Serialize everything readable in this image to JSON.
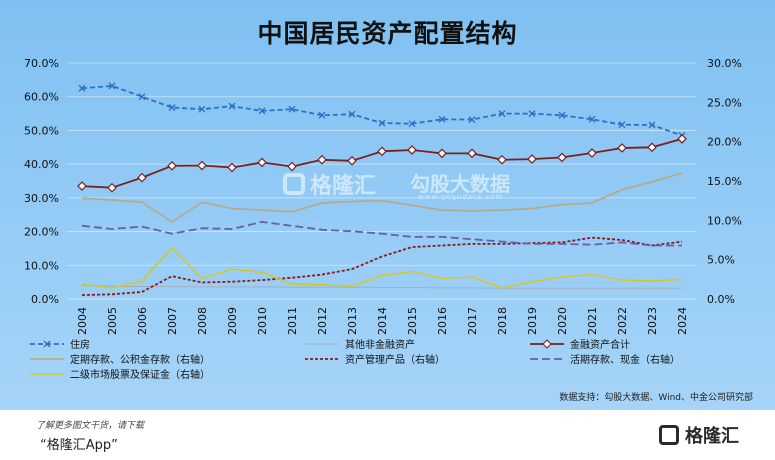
{
  "title": "中国居民资产配置结构",
  "source": "数据支持：勾股大数据、Wind、中金公司研究部",
  "footer": {
    "line1": "了解更多图文干货，请下载",
    "line2": "“格隆汇App”",
    "logo_text": "格隆汇"
  },
  "watermark": {
    "left_text": "格隆汇",
    "right_text": "勾股大数据",
    "right_sub": "www.gogudata.com"
  },
  "chart_data": {
    "type": "line",
    "title": "中国居民资产配置结构",
    "x": [
      "2004",
      "2005",
      "2006",
      "2007",
      "2008",
      "2009",
      "2010",
      "2011",
      "2012",
      "2013",
      "2014",
      "2015",
      "2016",
      "2017",
      "2018",
      "2019",
      "2020",
      "2021",
      "2022",
      "2023",
      "2024"
    ],
    "left_axis": {
      "ylim": [
        0,
        70
      ],
      "ticks": [
        "0.0%",
        "10.0%",
        "20.0%",
        "30.0%",
        "40.0%",
        "50.0%",
        "60.0%",
        "70.0%"
      ]
    },
    "right_axis": {
      "ylim": [
        0,
        30
      ],
      "ticks": [
        "0.0%",
        "5.0%",
        "10.0%",
        "15.0%",
        "20.0%",
        "25.0%",
        "30.0%"
      ]
    },
    "grid": true,
    "legend_position": "bottom",
    "series": [
      {
        "name": "住房",
        "axis": "left",
        "style": "dashed-x",
        "color": "#2f6fc4",
        "values": [
          62.5,
          63.2,
          60.0,
          56.8,
          56.3,
          57.2,
          55.8,
          56.3,
          54.5,
          54.8,
          52.2,
          52.0,
          53.3,
          53.2,
          55.0,
          55.0,
          54.5,
          53.3,
          51.7,
          51.6,
          48.5
        ]
      },
      {
        "name": "其他非金融资产",
        "axis": "left",
        "style": "solid-thin",
        "color": "#9fb1bd",
        "values": [
          4.0,
          3.8,
          3.7,
          3.7,
          3.6,
          3.6,
          3.6,
          3.5,
          3.5,
          3.5,
          3.4,
          3.4,
          3.3,
          3.3,
          3.2,
          3.2,
          3.2,
          3.2,
          3.2,
          3.2,
          3.2
        ]
      },
      {
        "name": "金融资产合计",
        "axis": "left",
        "style": "solid-diamond",
        "color": "#7a1f1f",
        "values": [
          33.5,
          33.0,
          36.0,
          39.5,
          39.6,
          39.0,
          40.5,
          39.3,
          41.3,
          41.0,
          43.8,
          44.2,
          43.2,
          43.2,
          41.3,
          41.5,
          42.0,
          43.3,
          44.8,
          45.0,
          47.5
        ]
      },
      {
        "name": "定期存款、公积金存款（右轴）",
        "axis": "right",
        "style": "solid",
        "color": "#b3ab8e",
        "values": [
          12.8,
          12.6,
          12.3,
          9.8,
          12.3,
          11.5,
          11.3,
          11.1,
          12.2,
          12.4,
          12.5,
          11.9,
          11.3,
          11.2,
          11.3,
          11.5,
          12.0,
          12.2,
          13.9,
          14.9,
          16.0
        ]
      },
      {
        "name": "资产管理产品（右轴）",
        "axis": "right",
        "style": "short-dash",
        "color": "#8b1a1a",
        "values": [
          0.5,
          0.6,
          0.9,
          2.9,
          2.1,
          2.2,
          2.4,
          2.7,
          3.1,
          3.8,
          5.4,
          6.6,
          6.8,
          7.0,
          7.0,
          7.1,
          7.2,
          7.8,
          7.5,
          6.8,
          7.3
        ]
      },
      {
        "name": "活期存款、现金（右轴）",
        "axis": "right",
        "style": "long-dash",
        "color": "#6a5da3",
        "values": [
          9.3,
          8.9,
          9.2,
          8.3,
          9.0,
          8.9,
          9.8,
          9.3,
          8.8,
          8.6,
          8.3,
          7.9,
          7.9,
          7.6,
          7.3,
          7.0,
          7.0,
          6.9,
          7.2,
          6.8,
          6.8
        ]
      },
      {
        "name": "二级市场股票及保证金（右轴）",
        "axis": "right",
        "style": "solid",
        "color": "#d4c62e",
        "values": [
          1.9,
          1.4,
          2.3,
          6.5,
          2.6,
          3.8,
          3.4,
          1.9,
          1.8,
          1.6,
          3.0,
          3.5,
          2.6,
          2.8,
          1.4,
          2.2,
          2.8,
          3.1,
          2.4,
          2.3,
          2.5
        ]
      }
    ]
  }
}
